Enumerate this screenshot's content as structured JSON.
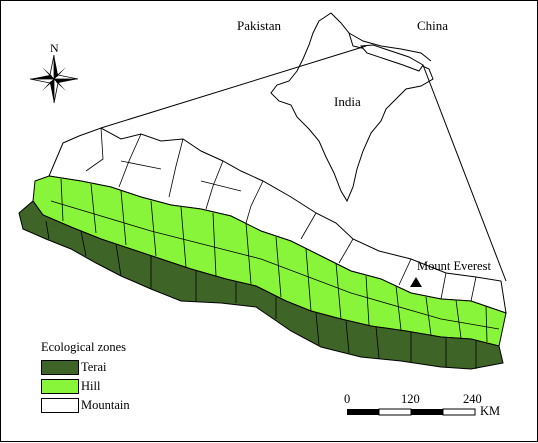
{
  "labels": {
    "pakistan": "Pakistan",
    "china": "China",
    "india": "India",
    "everest": "Mount Everest",
    "north": "N"
  },
  "legend": {
    "title": "Ecological zones",
    "items": [
      {
        "label": "Terai",
        "color": "#3f6428"
      },
      {
        "label": "Hill",
        "color": "#88f53a"
      },
      {
        "label": "Mountain",
        "color": "#ffffff"
      }
    ]
  },
  "scale_bar": {
    "ticks": [
      "0",
      "120",
      "240"
    ],
    "unit": "KM"
  },
  "colors": {
    "terai": "#3f6428",
    "hill": "#88f53a",
    "mountain": "#ffffff",
    "outline": "#000000"
  }
}
